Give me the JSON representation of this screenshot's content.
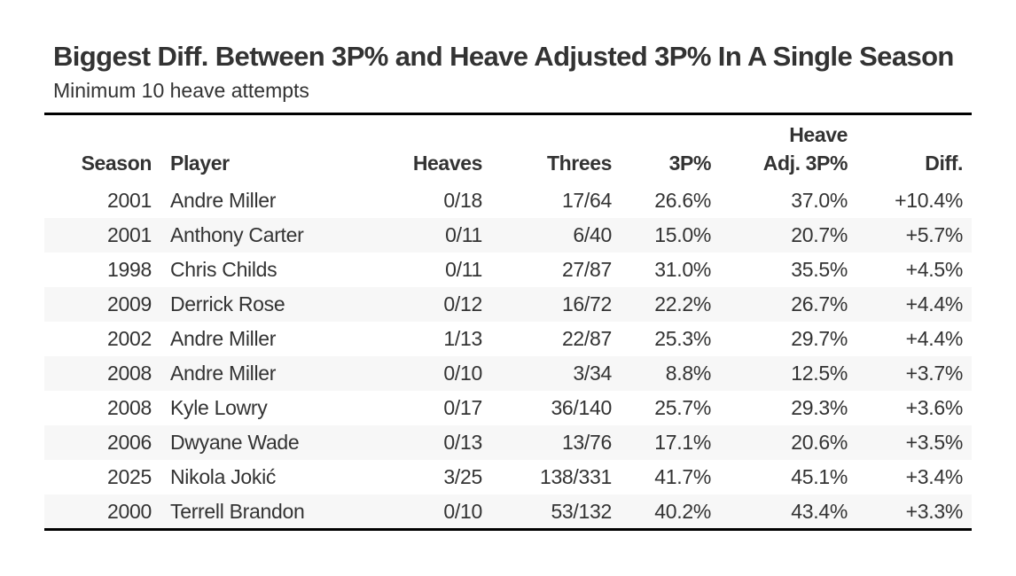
{
  "title": "Biggest Diff. Between 3P% and Heave Adjusted 3P% In A Single Season",
  "subtitle": "Minimum 10 heave attempts",
  "chart_data": {
    "type": "table",
    "title": "Biggest Diff. Between 3P% and Heave Adjusted 3P% In A Single Season",
    "subtitle": "Minimum 10 heave attempts",
    "columns": [
      {
        "key": "season",
        "label": "Season",
        "label_top": "",
        "label_bottom": "Season"
      },
      {
        "key": "player",
        "label": "Player",
        "label_top": "",
        "label_bottom": "Player"
      },
      {
        "key": "heaves",
        "label": "Heaves",
        "label_top": "",
        "label_bottom": "Heaves"
      },
      {
        "key": "threes",
        "label": "Threes",
        "label_top": "",
        "label_bottom": "Threes"
      },
      {
        "key": "pct",
        "label": "3P%",
        "label_top": "",
        "label_bottom": "3P%"
      },
      {
        "key": "adj",
        "label": "Heave Adj. 3P%",
        "label_top": "Heave",
        "label_bottom": "Adj. 3P%"
      },
      {
        "key": "diff",
        "label": "Diff.",
        "label_top": "",
        "label_bottom": "Diff."
      }
    ],
    "rows": [
      {
        "season": "2001",
        "player": "Andre Miller",
        "heaves": "0/18",
        "threes": "17/64",
        "pct": "26.6%",
        "adj": "37.0%",
        "diff": "+10.4%"
      },
      {
        "season": "2001",
        "player": "Anthony Carter",
        "heaves": "0/11",
        "threes": "6/40",
        "pct": "15.0%",
        "adj": "20.7%",
        "diff": "+5.7%"
      },
      {
        "season": "1998",
        "player": "Chris Childs",
        "heaves": "0/11",
        "threes": "27/87",
        "pct": "31.0%",
        "adj": "35.5%",
        "diff": "+4.5%"
      },
      {
        "season": "2009",
        "player": "Derrick Rose",
        "heaves": "0/12",
        "threes": "16/72",
        "pct": "22.2%",
        "adj": "26.7%",
        "diff": "+4.4%"
      },
      {
        "season": "2002",
        "player": "Andre Miller",
        "heaves": "1/13",
        "threes": "22/87",
        "pct": "25.3%",
        "adj": "29.7%",
        "diff": "+4.4%"
      },
      {
        "season": "2008",
        "player": "Andre Miller",
        "heaves": "0/10",
        "threes": "3/34",
        "pct": "8.8%",
        "adj": "12.5%",
        "diff": "+3.7%"
      },
      {
        "season": "2008",
        "player": "Kyle Lowry",
        "heaves": "0/17",
        "threes": "36/140",
        "pct": "25.7%",
        "adj": "29.3%",
        "diff": "+3.6%"
      },
      {
        "season": "2006",
        "player": "Dwyane Wade",
        "heaves": "0/13",
        "threes": "13/76",
        "pct": "17.1%",
        "adj": "20.6%",
        "diff": "+3.5%"
      },
      {
        "season": "2025",
        "player": "Nikola Jokić",
        "heaves": "3/25",
        "threes": "138/331",
        "pct": "41.7%",
        "adj": "45.1%",
        "diff": "+3.4%"
      },
      {
        "season": "2000",
        "player": "Terrell Brandon",
        "heaves": "0/10",
        "threes": "53/132",
        "pct": "40.2%",
        "adj": "43.4%",
        "diff": "+3.3%"
      }
    ]
  }
}
